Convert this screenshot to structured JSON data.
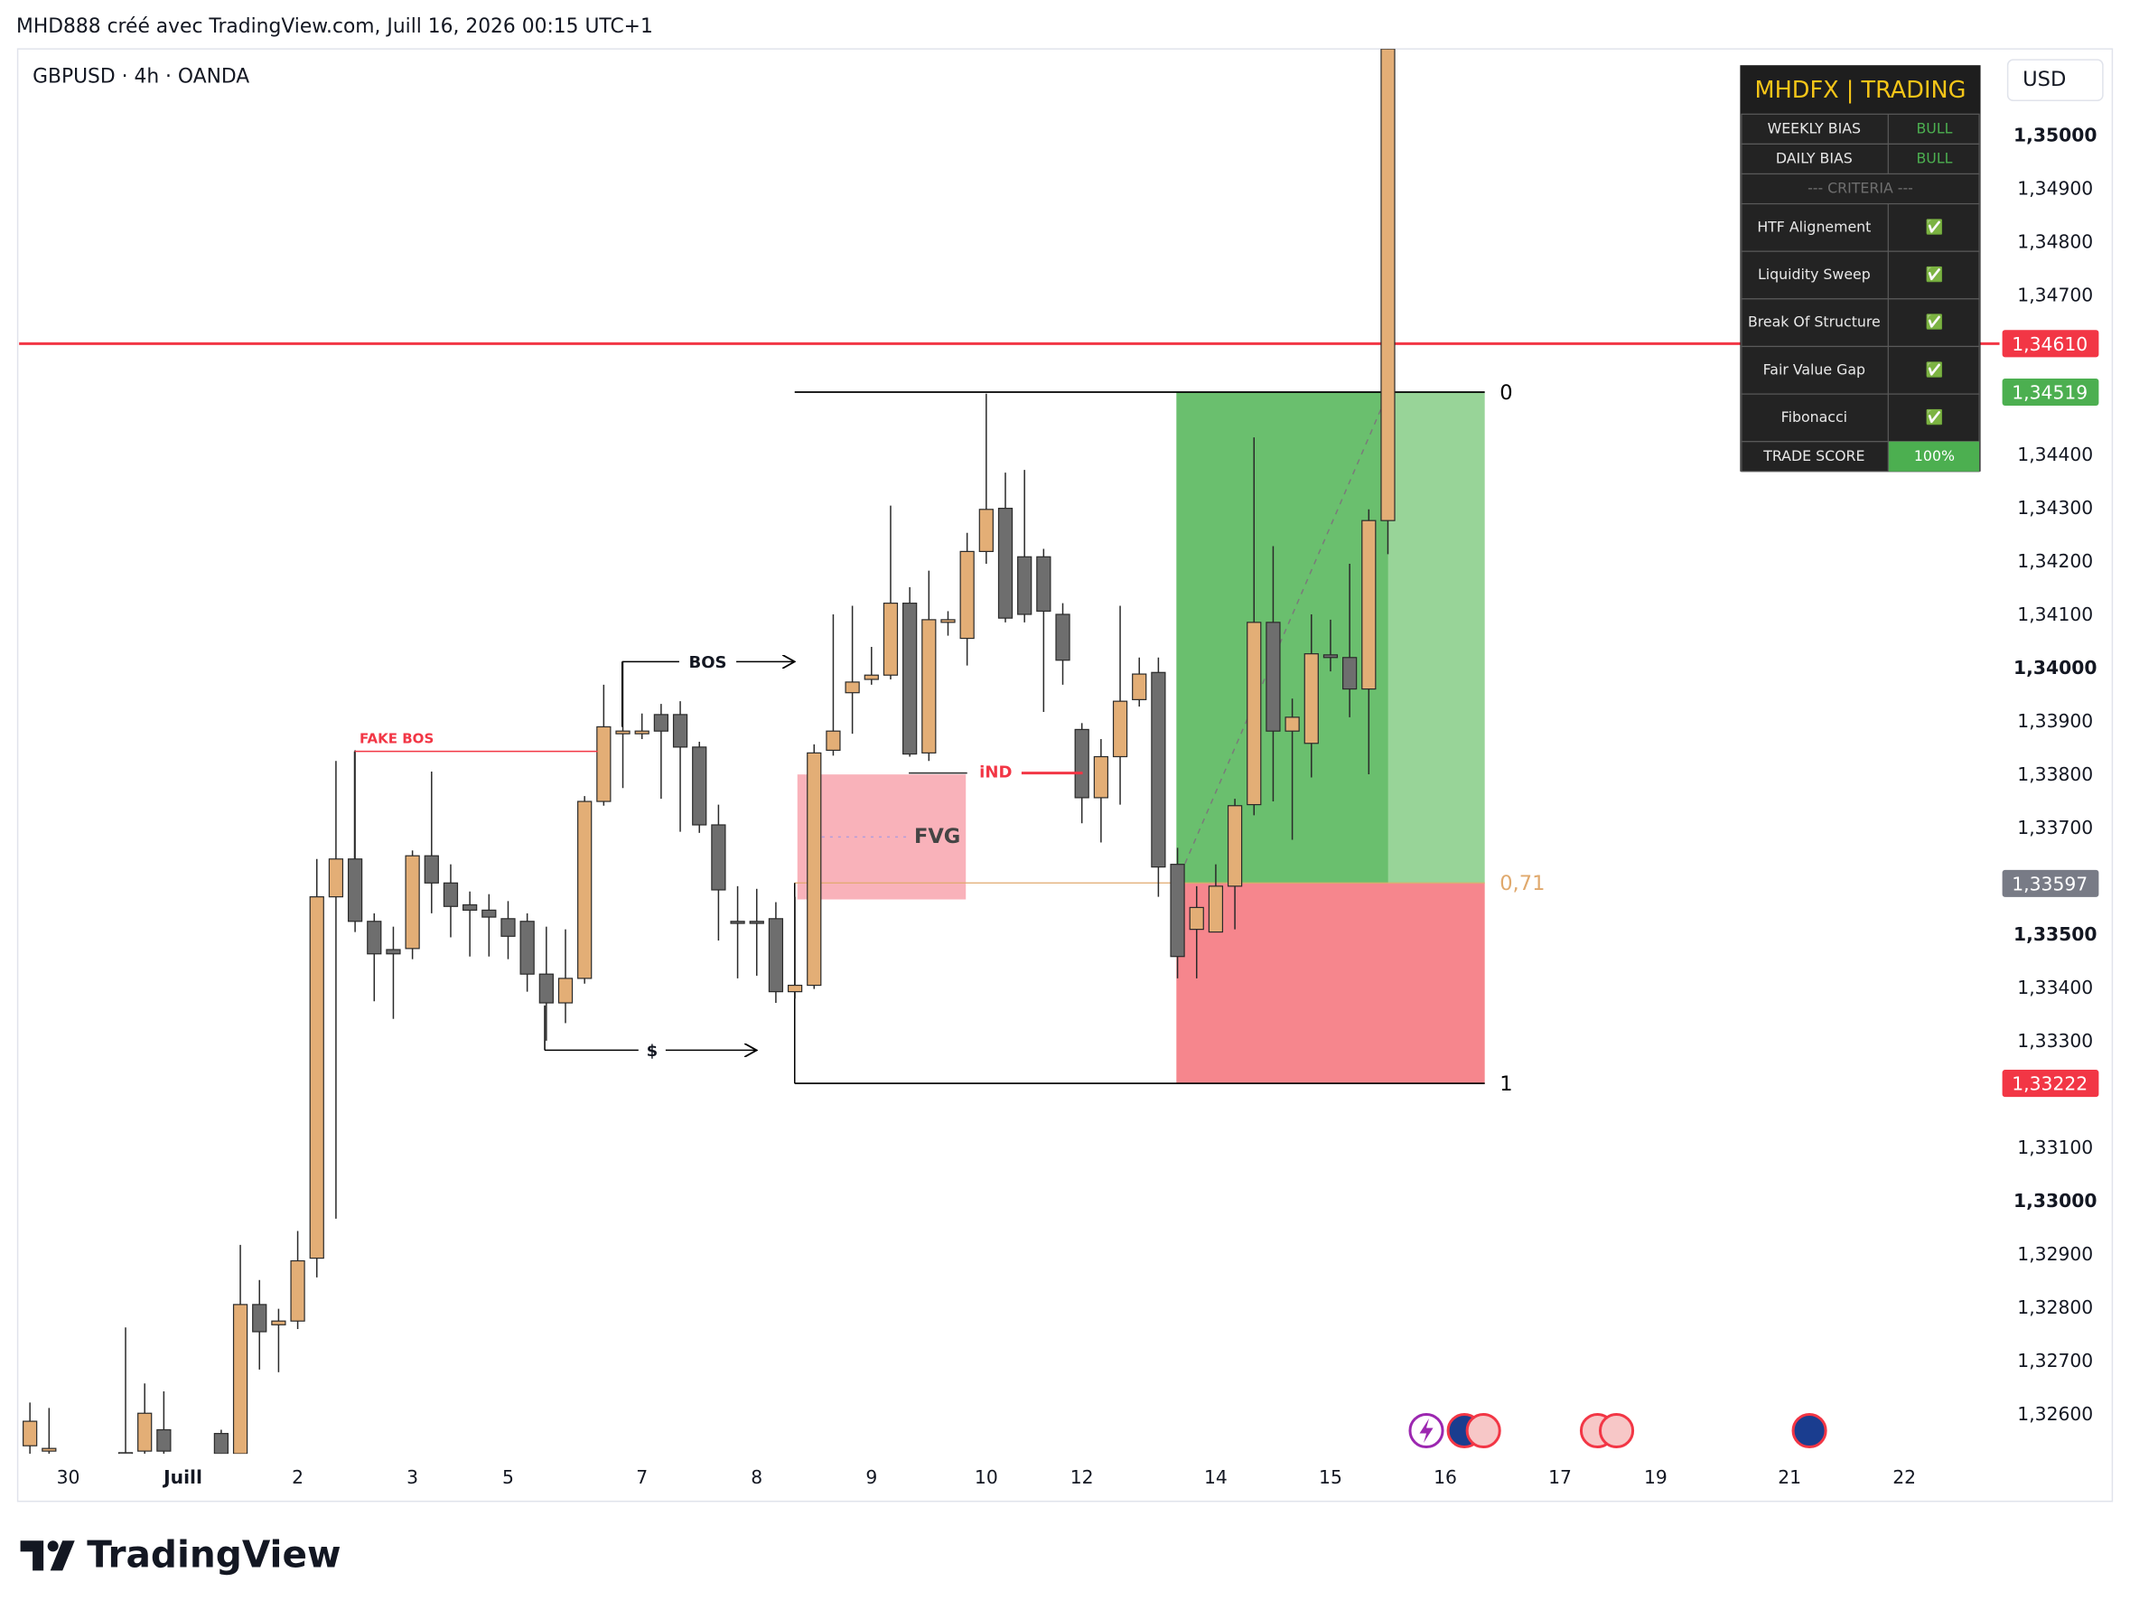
{
  "header": {
    "text": "MHD888 créé avec TradingView.com, Juill 16, 2026 00:15 UTC+1"
  },
  "chart_data": {
    "type": "candlestick",
    "title": "GBPUSD · 4h · OANDA",
    "currency": "USD",
    "x": [
      0,
      1,
      5,
      6,
      7,
      10,
      11,
      12,
      13,
      14,
      15,
      16,
      17,
      18,
      19,
      20,
      21,
      22,
      23,
      24,
      25,
      26,
      27,
      28,
      29,
      30,
      31,
      32,
      33,
      34,
      35,
      36,
      37,
      38,
      39,
      40,
      41,
      42,
      43,
      44,
      45,
      46,
      47,
      48,
      49,
      50,
      51,
      52,
      53,
      54,
      55,
      56,
      57,
      58,
      59,
      60,
      61,
      62,
      63,
      64,
      65,
      66,
      67,
      68,
      69,
      70,
      71
    ],
    "open": [
      1.32542,
      1.32532,
      1.32529,
      1.32532,
      1.32572,
      1.32565,
      1.32527,
      1.32807,
      1.32769,
      1.32776,
      1.32894,
      1.33572,
      1.33643,
      1.33526,
      1.33473,
      1.33475,
      1.33649,
      1.33598,
      1.33557,
      1.33547,
      1.33531,
      1.33526,
      1.33427,
      1.33373,
      1.33419,
      1.33751,
      1.33878,
      1.33878,
      1.33914,
      1.33914,
      1.33853,
      1.33707,
      1.33526,
      1.33526,
      1.33531,
      1.33394,
      1.33406,
      1.33847,
      1.33955,
      1.3398,
      1.33988,
      1.34123,
      1.33842,
      1.34087,
      1.34057,
      1.3422,
      1.34301,
      1.3421,
      1.3421,
      1.34102,
      1.33886,
      1.33758,
      1.33835,
      1.33942,
      1.33993,
      1.33633,
      1.33511,
      1.33506,
      1.33592,
      1.33745,
      1.34087,
      1.33883,
      1.3386,
      1.34026,
      1.34021,
      1.33962,
      1.34278
    ],
    "high": [
      1.32623,
      1.32613,
      1.32764,
      1.32659,
      1.32644,
      1.32572,
      1.32919,
      1.32853,
      1.32799,
      1.32945,
      1.33643,
      1.33827,
      1.33847,
      1.33541,
      1.33516,
      1.33659,
      1.33807,
      1.33633,
      1.33582,
      1.33577,
      1.33564,
      1.33541,
      1.33516,
      1.33511,
      1.33761,
      1.3397,
      1.34013,
      1.33916,
      1.33934,
      1.33939,
      1.33863,
      1.33745,
      1.33592,
      1.33587,
      1.33562,
      1.33572,
      1.33858,
      1.34102,
      1.34118,
      1.34041,
      1.34306,
      1.34153,
      1.34184,
      1.34108,
      1.34255,
      1.34516,
      1.34368,
      1.34373,
      1.34225,
      1.34123,
      1.33898,
      1.33868,
      1.34118,
      1.34021,
      1.34021,
      1.33664,
      1.33592,
      1.33633,
      1.33756,
      1.34434,
      1.3423,
      1.33944,
      1.34102,
      1.34092,
      1.34197,
      1.34299,
      1.35163
    ],
    "low": [
      1.32527,
      1.32527,
      1.32527,
      1.32527,
      1.32527,
      1.32527,
      1.32527,
      1.32685,
      1.3268,
      1.32761,
      1.32858,
      1.32968,
      1.33506,
      1.33376,
      1.33343,
      1.33455,
      1.33541,
      1.33496,
      1.3346,
      1.3346,
      1.33455,
      1.33394,
      1.33302,
      1.33335,
      1.33409,
      1.33743,
      1.33776,
      1.33868,
      1.33756,
      1.33694,
      1.33692,
      1.3349,
      1.33419,
      1.33424,
      1.33373,
      1.33381,
      1.33399,
      1.33837,
      1.33878,
      1.3397,
      1.3398,
      1.33835,
      1.33827,
      1.34062,
      1.34006,
      1.34197,
      1.34087,
      1.34087,
      1.33919,
      1.3397,
      1.3371,
      1.33674,
      1.33745,
      1.33929,
      1.33572,
      1.33419,
      1.33419,
      1.33506,
      1.33511,
      1.33725,
      1.33751,
      1.33679,
      1.33796,
      1.33995,
      1.33909,
      1.33802,
      1.34215
    ],
    "close": [
      1.32588,
      1.32537,
      1.32527,
      1.32603,
      1.32532,
      1.32527,
      1.32807,
      1.32756,
      1.32776,
      1.32889,
      1.33572,
      1.33643,
      1.33526,
      1.33465,
      1.33465,
      1.33649,
      1.33598,
      1.33554,
      1.33547,
      1.33534,
      1.33498,
      1.33427,
      1.33373,
      1.33419,
      1.33751,
      1.33891,
      1.33883,
      1.33883,
      1.33883,
      1.33853,
      1.33707,
      1.33585,
      1.33524,
      1.33524,
      1.33394,
      1.33406,
      1.33842,
      1.33883,
      1.33975,
      1.33988,
      1.34123,
      1.3384,
      1.34092,
      1.34092,
      1.3422,
      1.34299,
      1.34095,
      1.34102,
      1.34108,
      1.34016,
      1.33758,
      1.33835,
      1.33939,
      1.3399,
      1.33628,
      1.3346,
      1.33552,
      1.33592,
      1.33743,
      1.34087,
      1.33883,
      1.33909,
      1.34028,
      1.34021,
      1.33962,
      1.34278,
      1.35163
    ],
    "up_color": "#e3ae76",
    "down_color": "#6e6e6e",
    "border_color": "#2a2a2a",
    "xlim": [
      -0.57,
      102.98
    ],
    "xticks": [
      {
        "value": 2,
        "label": "30"
      },
      {
        "value": 8,
        "label": "Juill",
        "emphasis": true
      },
      {
        "value": 14,
        "label": "2"
      },
      {
        "value": 20,
        "label": "3"
      },
      {
        "value": 25,
        "label": "5"
      },
      {
        "value": 32,
        "label": "7"
      },
      {
        "value": 38,
        "label": "8"
      },
      {
        "value": 44,
        "label": "9"
      },
      {
        "value": 50,
        "label": "10"
      },
      {
        "value": 55,
        "label": "12"
      },
      {
        "value": 62,
        "label": "14"
      },
      {
        "value": 68,
        "label": "15"
      },
      {
        "value": 74,
        "label": "16"
      },
      {
        "value": 80,
        "label": "17"
      },
      {
        "value": 85,
        "label": "19"
      },
      {
        "value": 92,
        "label": "21"
      },
      {
        "value": 98,
        "label": "22"
      }
    ],
    "ylim": [
      1.32527,
      1.35163
    ],
    "yticks": [
      {
        "value": 1.35,
        "label": "1,35000",
        "emphasis": true
      },
      {
        "value": 1.349,
        "label": "1,34900"
      },
      {
        "value": 1.348,
        "label": "1,34800"
      },
      {
        "value": 1.347,
        "label": "1,34700"
      },
      {
        "value": 1.344,
        "label": "1,34400"
      },
      {
        "value": 1.343,
        "label": "1,34300"
      },
      {
        "value": 1.342,
        "label": "1,34200"
      },
      {
        "value": 1.341,
        "label": "1,34100"
      },
      {
        "value": 1.34,
        "label": "1,34000",
        "emphasis": true
      },
      {
        "value": 1.339,
        "label": "1,33900"
      },
      {
        "value": 1.338,
        "label": "1,33800"
      },
      {
        "value": 1.337,
        "label": "1,33700"
      },
      {
        "value": 1.335,
        "label": "1,33500",
        "emphasis": true
      },
      {
        "value": 1.334,
        "label": "1,33400"
      },
      {
        "value": 1.333,
        "label": "1,33300"
      },
      {
        "value": 1.331,
        "label": "1,33100"
      },
      {
        "value": 1.33,
        "label": "1,33000",
        "emphasis": true
      },
      {
        "value": 1.329,
        "label": "1,32900"
      },
      {
        "value": 1.328,
        "label": "1,32800"
      },
      {
        "value": 1.327,
        "label": "1,32700"
      },
      {
        "value": 1.326,
        "label": "1,32600"
      }
    ],
    "alert_line": {
      "value": 1.3461,
      "label": "1,34610",
      "color": "#f23645"
    },
    "position": {
      "target": {
        "value": 1.34519,
        "label": "1,34519"
      },
      "entry": {
        "value": 1.33597,
        "label": "1,33597"
      },
      "stop": {
        "value": 1.33222,
        "label": "1,33222"
      }
    },
    "fib_levels": [
      0,
      {
        "value": 0.71,
        "label": "0,71"
      },
      1
    ],
    "fib_colors": [
      "#000000",
      "#e0a96d",
      "#000000"
    ],
    "annotations": {
      "bos": "BOS",
      "fake_bos": "FAKE BOS",
      "ind": "iND",
      "fvg": "FVG",
      "liquidity": "$"
    }
  },
  "table": {
    "title": "MHDFX | TRADING",
    "rows": [
      [
        "WEEKLY BIAS",
        "BULL"
      ],
      [
        "DAILY BIAS",
        "BULL"
      ],
      [
        "--- CRITERIA ---"
      ],
      [
        "HTF Alignement",
        "✅"
      ],
      [
        "Liquidity Sweep",
        "✅"
      ],
      [
        "Break Of Structure",
        "✅"
      ],
      [
        "Fair Value Gap",
        "✅"
      ],
      [
        "Fibonacci",
        "✅"
      ],
      [
        "TRADE SCORE",
        "100%"
      ]
    ]
  },
  "footer": {
    "logo": "TradingView"
  }
}
